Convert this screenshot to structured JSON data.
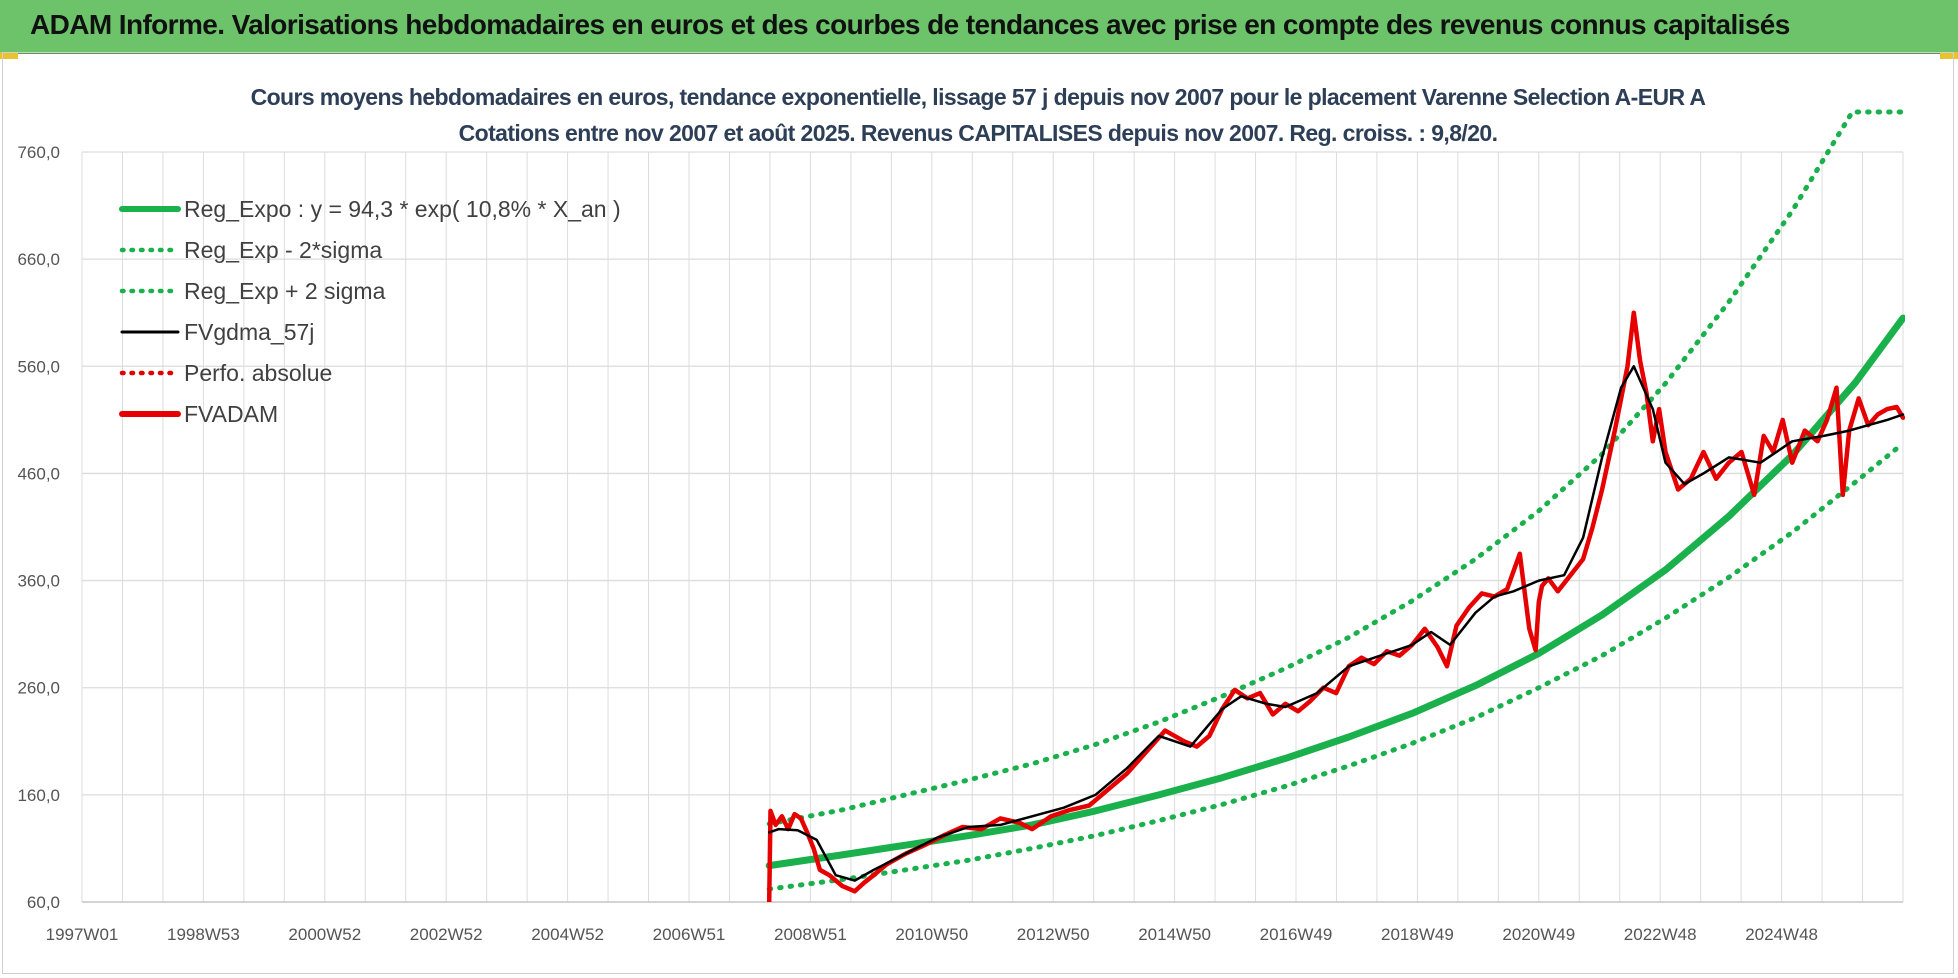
{
  "page": {
    "banner_title": "ADAM Informe. Valorisations hebdomadaires en euros et des courbes de tendances avec prise en compte des revenus connus capitalisés"
  },
  "colors": {
    "banner": "#6cc36a",
    "trend": "#1ab04c",
    "band": "#1ab04c",
    "smooth": "#000000",
    "perf": "#e00000",
    "price": "#e60000",
    "grid": "#dcdcdc"
  },
  "chart_data": {
    "type": "line",
    "title": "Cours moyens hebdomadaires en euros, tendance exponentielle, lissage 57 j depuis nov 2007 pour le placement Varenne Selection A-EUR A",
    "subtitle": "Cotations entre nov 2007 et août 2025. Revenus CAPITALISES depuis nov 2007. Reg. croiss. : 9,8/20.",
    "xlabel": "",
    "ylabel": "",
    "x_range": [
      1997.0,
      2025.75
    ],
    "ylim": [
      60,
      760
    ],
    "y_ticks": [
      "760,0",
      "660,0",
      "560,0",
      "460,0",
      "360,0",
      "260,0",
      "160,0",
      "60,0"
    ],
    "x_ticks": [
      "1997W01",
      "1998W53",
      "2000W52",
      "2002W52",
      "2004W52",
      "2006W51",
      "2008W51",
      "2010W50",
      "2012W50",
      "2014W50",
      "2016W49",
      "2018W49",
      "2020W49",
      "2022W48",
      "2024W48"
    ],
    "grid": true,
    "legend_position": "top-left",
    "legend": [
      {
        "label": "Reg_Expo : y = 94,3 * exp( 10,8% *  X_an )",
        "style": "solid-thick",
        "color": "#1ab04c"
      },
      {
        "label": "Reg_Exp - 2*sigma",
        "style": "dotted",
        "color": "#1ab04c"
      },
      {
        "label": "Reg_Exp + 2 sigma",
        "style": "dotted",
        "color": "#1ab04c"
      },
      {
        "label": "FVgdma_57j",
        "style": "solid",
        "color": "#000000"
      },
      {
        "label": "Perfo. absolue",
        "style": "dotted",
        "color": "#e00000"
      },
      {
        "label": "FVADAM",
        "style": "solid-thick",
        "color": "#e60000"
      }
    ],
    "series": [
      {
        "name": "Reg_Expo : y = 94,3 * exp( 10,8% *  X_an )",
        "x": [
          2007.85,
          2009.0,
          2010.0,
          2011.0,
          2012.0,
          2013.0,
          2014.0,
          2015.0,
          2016.0,
          2017.0,
          2018.0,
          2019.0,
          2020.0,
          2021.0,
          2022.0,
          2023.0,
          2024.0,
          2025.0,
          2025.75
        ],
        "values": [
          94,
          104,
          113,
          122,
          132,
          145,
          160,
          176,
          194,
          214,
          236,
          262,
          292,
          328,
          370,
          420,
          477,
          545,
          605
        ]
      },
      {
        "name": "Reg_Exp - 2*sigma",
        "x": [
          2007.85,
          2009.0,
          2010.0,
          2011.0,
          2012.0,
          2013.0,
          2014.0,
          2015.0,
          2016.0,
          2017.0,
          2018.0,
          2019.0,
          2020.0,
          2021.0,
          2022.0,
          2023.0,
          2024.0,
          2025.0,
          2025.75
        ],
        "values": [
          72,
          81,
          90,
          99,
          110,
          122,
          136,
          151,
          168,
          187,
          208,
          232,
          260,
          290,
          325,
          363,
          405,
          452,
          488
        ]
      },
      {
        "name": "Reg_Exp + 2 sigma",
        "x": [
          2007.85,
          2009.0,
          2010.0,
          2011.0,
          2012.0,
          2013.0,
          2014.0,
          2015.0,
          2016.0,
          2017.0,
          2018.0,
          2019.0,
          2020.0,
          2021.0,
          2022.0,
          2023.0,
          2024.0,
          2024.95,
          2025.75
        ],
        "values": [
          133,
          146,
          160,
          174,
          189,
          207,
          228,
          252,
          278,
          307,
          341,
          380,
          425,
          478,
          544,
          620,
          705,
          800,
          800
        ]
      },
      {
        "name": "FVgdma_57j",
        "x": [
          2007.85,
          2008.0,
          2008.3,
          2008.6,
          2008.9,
          2009.2,
          2009.5,
          2010.0,
          2010.5,
          2011.0,
          2011.5,
          2012.0,
          2012.5,
          2013.0,
          2013.5,
          2014.0,
          2014.5,
          2015.0,
          2015.3,
          2015.7,
          2016.0,
          2016.5,
          2017.0,
          2017.5,
          2018.0,
          2018.3,
          2018.6,
          2019.0,
          2019.3,
          2019.6,
          2020.0,
          2020.4,
          2020.7,
          2021.0,
          2021.3,
          2021.5,
          2021.8,
          2022.0,
          2022.3,
          2022.6,
          2023.0,
          2023.5,
          2024.0,
          2024.5,
          2024.9,
          2025.2,
          2025.5,
          2025.75
        ],
        "values": [
          125,
          128,
          127,
          118,
          85,
          80,
          90,
          105,
          120,
          130,
          132,
          140,
          148,
          160,
          185,
          215,
          205,
          240,
          252,
          245,
          242,
          255,
          280,
          290,
          300,
          312,
          300,
          330,
          345,
          350,
          360,
          365,
          400,
          475,
          540,
          560,
          520,
          470,
          450,
          460,
          475,
          470,
          490,
          495,
          500,
          505,
          510,
          515
        ]
      },
      {
        "name": "FVADAM",
        "x": [
          2007.85,
          2007.87,
          2007.95,
          2008.05,
          2008.15,
          2008.25,
          2008.35,
          2008.45,
          2008.55,
          2008.65,
          2008.8,
          2009.0,
          2009.2,
          2009.35,
          2009.5,
          2009.7,
          2010.0,
          2010.3,
          2010.6,
          2010.9,
          2011.2,
          2011.5,
          2011.8,
          2012.0,
          2012.3,
          2012.6,
          2012.9,
          2013.2,
          2013.5,
          2013.8,
          2014.1,
          2014.4,
          2014.6,
          2014.8,
          2015.0,
          2015.2,
          2015.4,
          2015.6,
          2015.8,
          2016.0,
          2016.2,
          2016.4,
          2016.6,
          2016.8,
          2017.0,
          2017.2,
          2017.4,
          2017.6,
          2017.8,
          2018.0,
          2018.2,
          2018.4,
          2018.55,
          2018.7,
          2018.9,
          2019.1,
          2019.3,
          2019.5,
          2019.7,
          2019.85,
          2019.95,
          2020.0,
          2020.05,
          2020.15,
          2020.3,
          2020.5,
          2020.7,
          2020.85,
          2021.0,
          2021.2,
          2021.4,
          2021.5,
          2021.6,
          2021.7,
          2021.8,
          2021.9,
          2022.0,
          2022.2,
          2022.4,
          2022.6,
          2022.8,
          2023.0,
          2023.2,
          2023.4,
          2023.55,
          2023.7,
          2023.85,
          2024.0,
          2024.2,
          2024.4,
          2024.55,
          2024.7,
          2024.8,
          2024.9,
          2025.05,
          2025.2,
          2025.35,
          2025.5,
          2025.65,
          2025.75
        ],
        "values": [
          60,
          145,
          132,
          140,
          128,
          142,
          138,
          125,
          110,
          90,
          85,
          75,
          70,
          78,
          85,
          95,
          105,
          113,
          122,
          130,
          128,
          138,
          134,
          128,
          140,
          146,
          150,
          165,
          180,
          200,
          220,
          210,
          205,
          215,
          240,
          258,
          250,
          255,
          235,
          245,
          238,
          248,
          260,
          255,
          280,
          288,
          282,
          294,
          290,
          300,
          315,
          298,
          280,
          318,
          335,
          348,
          345,
          352,
          385,
          315,
          295,
          340,
          355,
          362,
          350,
          365,
          380,
          410,
          445,
          500,
          560,
          610,
          565,
          535,
          490,
          520,
          480,
          445,
          455,
          480,
          455,
          470,
          480,
          440,
          495,
          480,
          510,
          470,
          500,
          490,
          510,
          540,
          440,
          500,
          530,
          505,
          515,
          520,
          522,
          512
        ]
      }
    ]
  }
}
